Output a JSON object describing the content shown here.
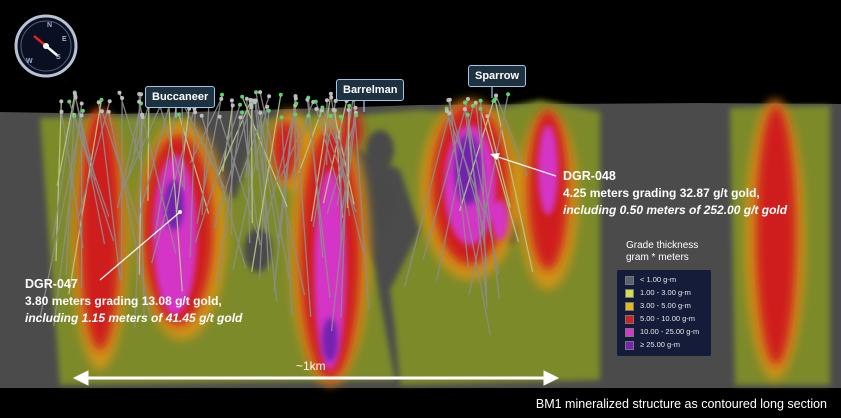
{
  "compass": {
    "labels": [
      "N",
      "E",
      "S",
      "W"
    ]
  },
  "deposits": [
    {
      "name": "Buccaneer"
    },
    {
      "name": "Barrelman"
    },
    {
      "name": "Sparrow"
    }
  ],
  "callouts": [
    {
      "hole": "DGR-047",
      "line1": "3.80 meters grading 13.08 g/t gold,",
      "line2": "including 1.15 meters of 41.45 g/t gold"
    },
    {
      "hole": "DGR-048",
      "line1": "4.25 meters grading 32.87 g/t gold,",
      "line2": "including 0.50 meters of 252.00 g/t gold"
    }
  ],
  "legend": {
    "title1": "Grade thickness",
    "title2": "gram * meters",
    "items": [
      {
        "label": "< 1.00 g-m",
        "color": "#5a6072"
      },
      {
        "label": "1.00 - 3.00 g-m",
        "color": "#cfe04a"
      },
      {
        "label": "3.00 - 5.00 g-m",
        "color": "#e8b81a"
      },
      {
        "label": "5.00 - 10.00 g-m",
        "color": "#d42020"
      },
      {
        "label": "10.00 - 25.00 g-m",
        "color": "#d836c8"
      },
      {
        "label": "≥ 25.00 g-m",
        "color": "#7a20b8"
      }
    ]
  },
  "scale": {
    "label": "~1km"
  },
  "caption": "BM1 mineralized structure as contoured long section",
  "colors": {
    "background": "#000000",
    "host_rock": "#4a4a4a",
    "low_grade": "#7c8a2a"
  }
}
